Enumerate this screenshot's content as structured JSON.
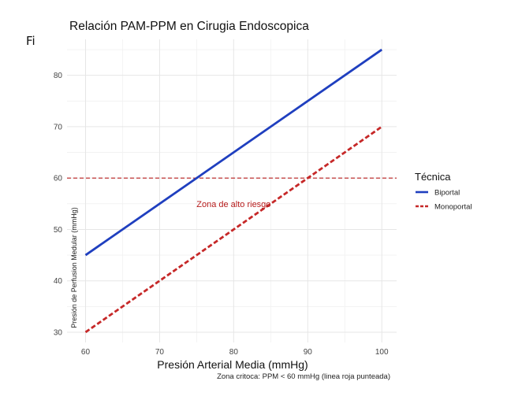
{
  "page_fragment": "Fi",
  "chart_data": {
    "type": "line",
    "title": "Relación PAM-PPM en Cirugia Endoscopica",
    "xlabel": "Presión Arterial Media (mmHg)",
    "ylabel": "Presión de Perfusion Medular (mmHg)",
    "caption": "Zona critoca: PPM < 60 mmHg (linea roja punteada)",
    "xlim": [
      57.5,
      102
    ],
    "ylim": [
      28,
      87
    ],
    "x_ticks": [
      60,
      70,
      80,
      90,
      100
    ],
    "y_ticks": [
      30,
      40,
      50,
      60,
      70,
      80
    ],
    "x": [
      60,
      100
    ],
    "series": [
      {
        "name": "Biportal",
        "values": [
          45,
          85
        ],
        "color": "#1f3fbf",
        "dash": "solid"
      },
      {
        "name": "Monoportal",
        "values": [
          30,
          70
        ],
        "color": "#c62828",
        "dash": "dashed"
      }
    ],
    "reference_line": {
      "y": 60,
      "color": "#b71c1c",
      "dash": "dashed"
    },
    "annotation": {
      "text": "Zona de alto riesgo",
      "x": 80,
      "y": 55,
      "color": "#b71c1c"
    },
    "legend": {
      "title": "Técnica",
      "position": "right"
    }
  }
}
